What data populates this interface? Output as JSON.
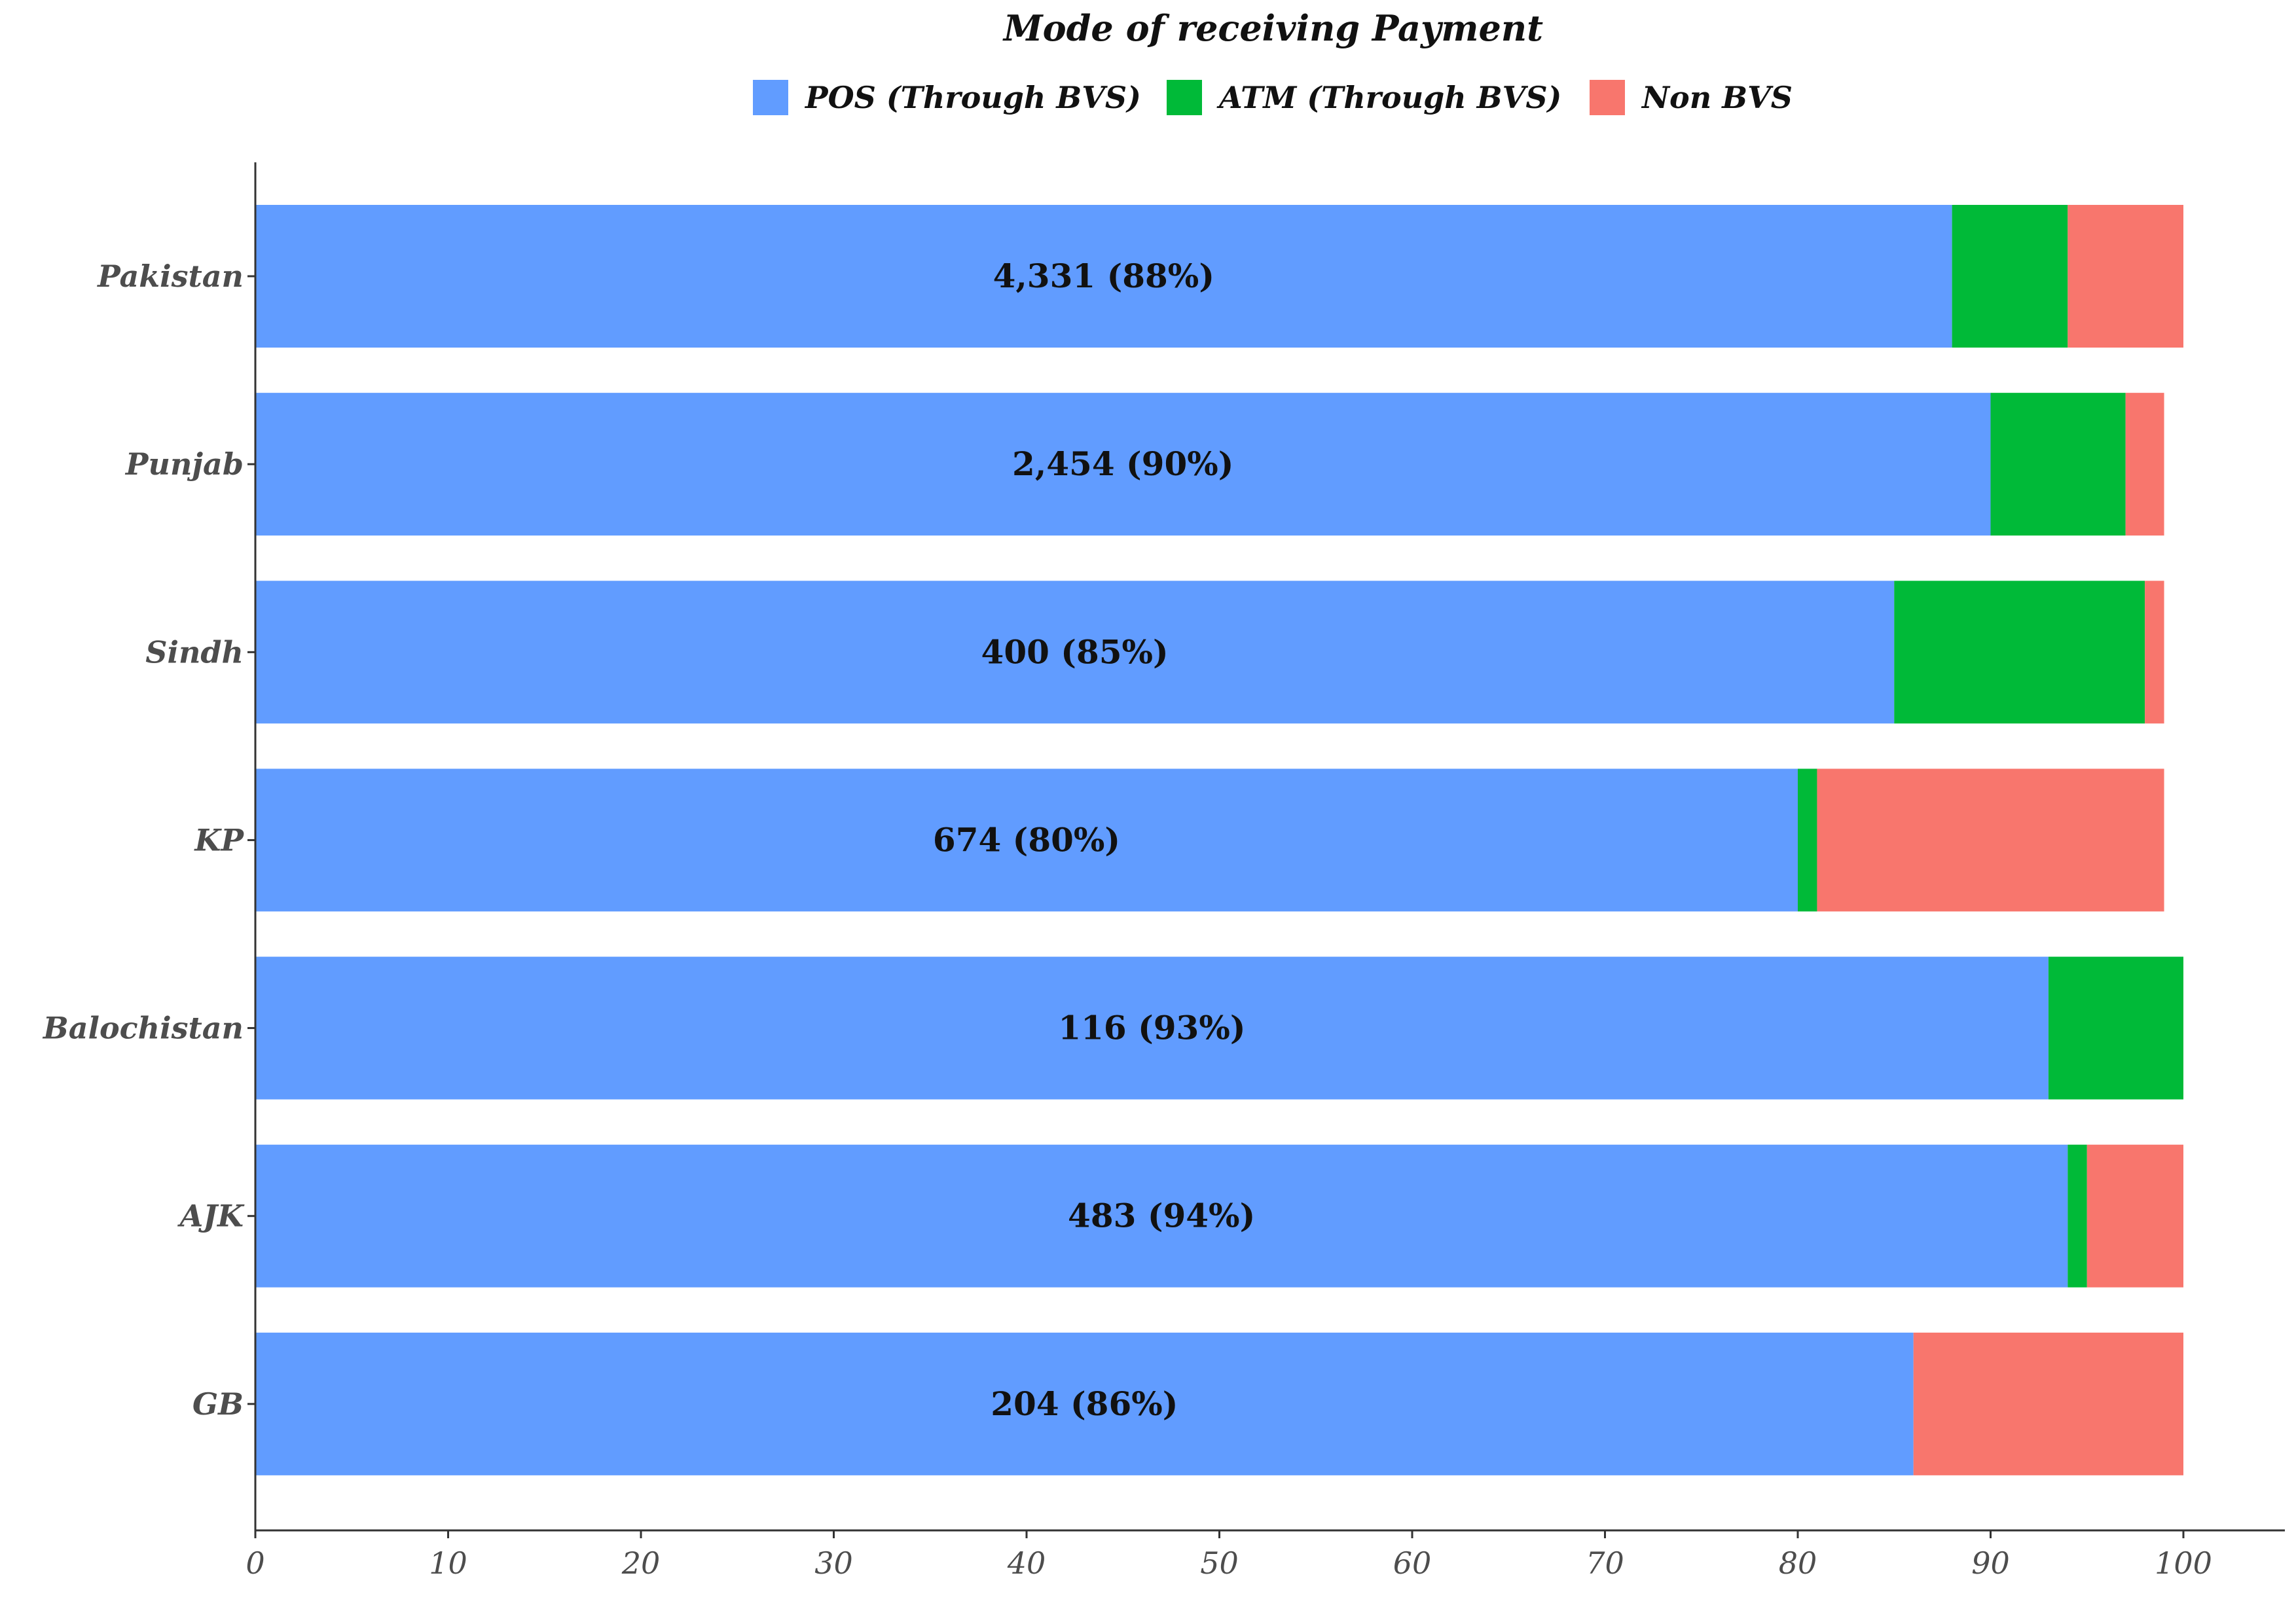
{
  "chart_data": {
    "type": "bar",
    "orientation": "horizontal",
    "stacked": true,
    "title": "Mode of receiving Payment",
    "xlabel": "",
    "ylabel": "",
    "xlim": [
      0,
      100
    ],
    "xticks": [
      0,
      10,
      20,
      30,
      40,
      50,
      60,
      70,
      80,
      90,
      100
    ],
    "grid": false,
    "legend_position": "top",
    "categories": [
      "Pakistan",
      "Punjab",
      "Sindh",
      "KP",
      "Balochistan",
      "AJK",
      "GB"
    ],
    "series": [
      {
        "name": "POS (Through BVS)",
        "color": "#619CFF",
        "values": [
          88,
          90,
          85,
          80,
          93,
          94,
          86
        ]
      },
      {
        "name": "ATM (Through BVS)",
        "color": "#00BA38",
        "values": [
          6,
          7,
          13,
          1,
          7,
          1,
          0
        ]
      },
      {
        "name": "Non BVS",
        "color": "#F8766D",
        "values": [
          6,
          2,
          1,
          18,
          0,
          5,
          14
        ]
      }
    ],
    "data_labels": [
      "4,331 (88%)",
      "2,454 (90%)",
      "400 (85%)",
      "674 (80%)",
      "116 (93%)",
      "483 (94%)",
      "204 (86%)"
    ]
  }
}
